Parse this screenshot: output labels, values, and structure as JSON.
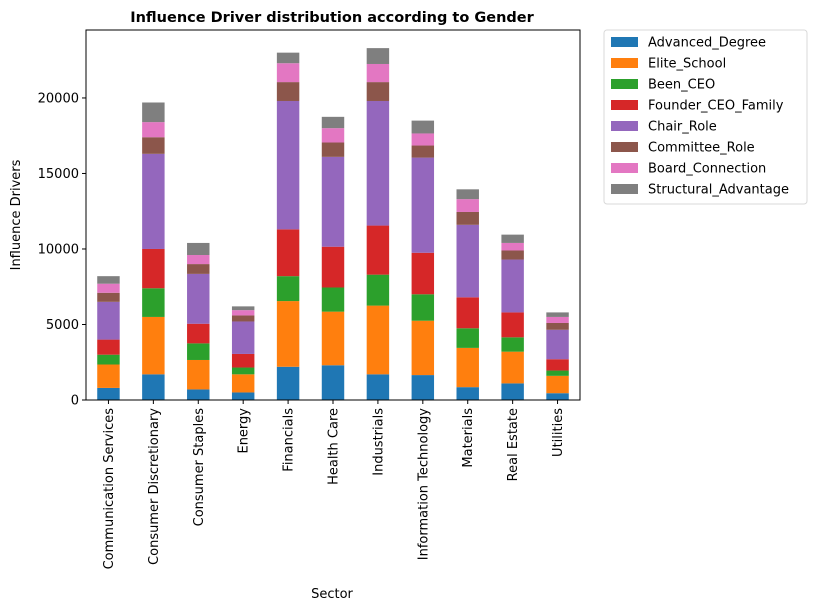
{
  "chart_data": {
    "type": "bar",
    "stacked": true,
    "title": "Influence Driver distribution according to Gender",
    "xlabel": "Sector",
    "ylabel": "Influence Drivers",
    "ylim": [
      0,
      24500
    ],
    "yticks": [
      0,
      5000,
      10000,
      15000,
      20000
    ],
    "ytick_labels": [
      "0",
      "5000",
      "10000",
      "15000",
      "20000"
    ],
    "grid": false,
    "legend_position": "outside-upper-right",
    "categories": [
      "Communication Services",
      "Consumer Discretionary",
      "Consumer Staples",
      "Energy",
      "Financials",
      "Health Care",
      "Industrials",
      "Information Technology",
      "Materials",
      "Real Estate",
      "Utilities"
    ],
    "series": [
      {
        "name": "Advanced_Degree",
        "color": "#1f77b4",
        "values": [
          800,
          1700,
          700,
          500,
          2200,
          2300,
          1700,
          1650,
          850,
          1100,
          450
        ]
      },
      {
        "name": "Elite_School",
        "color": "#ff7f0e",
        "values": [
          1550,
          3800,
          1950,
          1200,
          4350,
          3550,
          4550,
          3600,
          2600,
          2100,
          1150
        ]
      },
      {
        "name": "Been_CEO",
        "color": "#2ca02c",
        "values": [
          650,
          1900,
          1100,
          450,
          1650,
          1600,
          2050,
          1750,
          1300,
          950,
          350
        ]
      },
      {
        "name": "Founder_CEO_Family",
        "color": "#d62728",
        "values": [
          1000,
          2600,
          1300,
          900,
          3100,
          2700,
          3250,
          2750,
          2050,
          1650,
          750
        ]
      },
      {
        "name": "Chair_Role",
        "color": "#9467bd",
        "values": [
          2500,
          6300,
          3300,
          2150,
          8500,
          5950,
          8250,
          6300,
          4800,
          3500,
          1950
        ]
      },
      {
        "name": "Committee_Role",
        "color": "#8c564b",
        "values": [
          600,
          1100,
          650,
          400,
          1250,
          950,
          1250,
          800,
          850,
          600,
          450
        ]
      },
      {
        "name": "Board_Connection",
        "color": "#e377c2",
        "values": [
          600,
          1000,
          600,
          350,
          1250,
          950,
          1200,
          800,
          850,
          500,
          400
        ]
      },
      {
        "name": "Structural_Advantage",
        "color": "#7f7f7f",
        "values": [
          500,
          1300,
          800,
          250,
          700,
          750,
          1050,
          850,
          650,
          550,
          300
        ]
      }
    ]
  }
}
